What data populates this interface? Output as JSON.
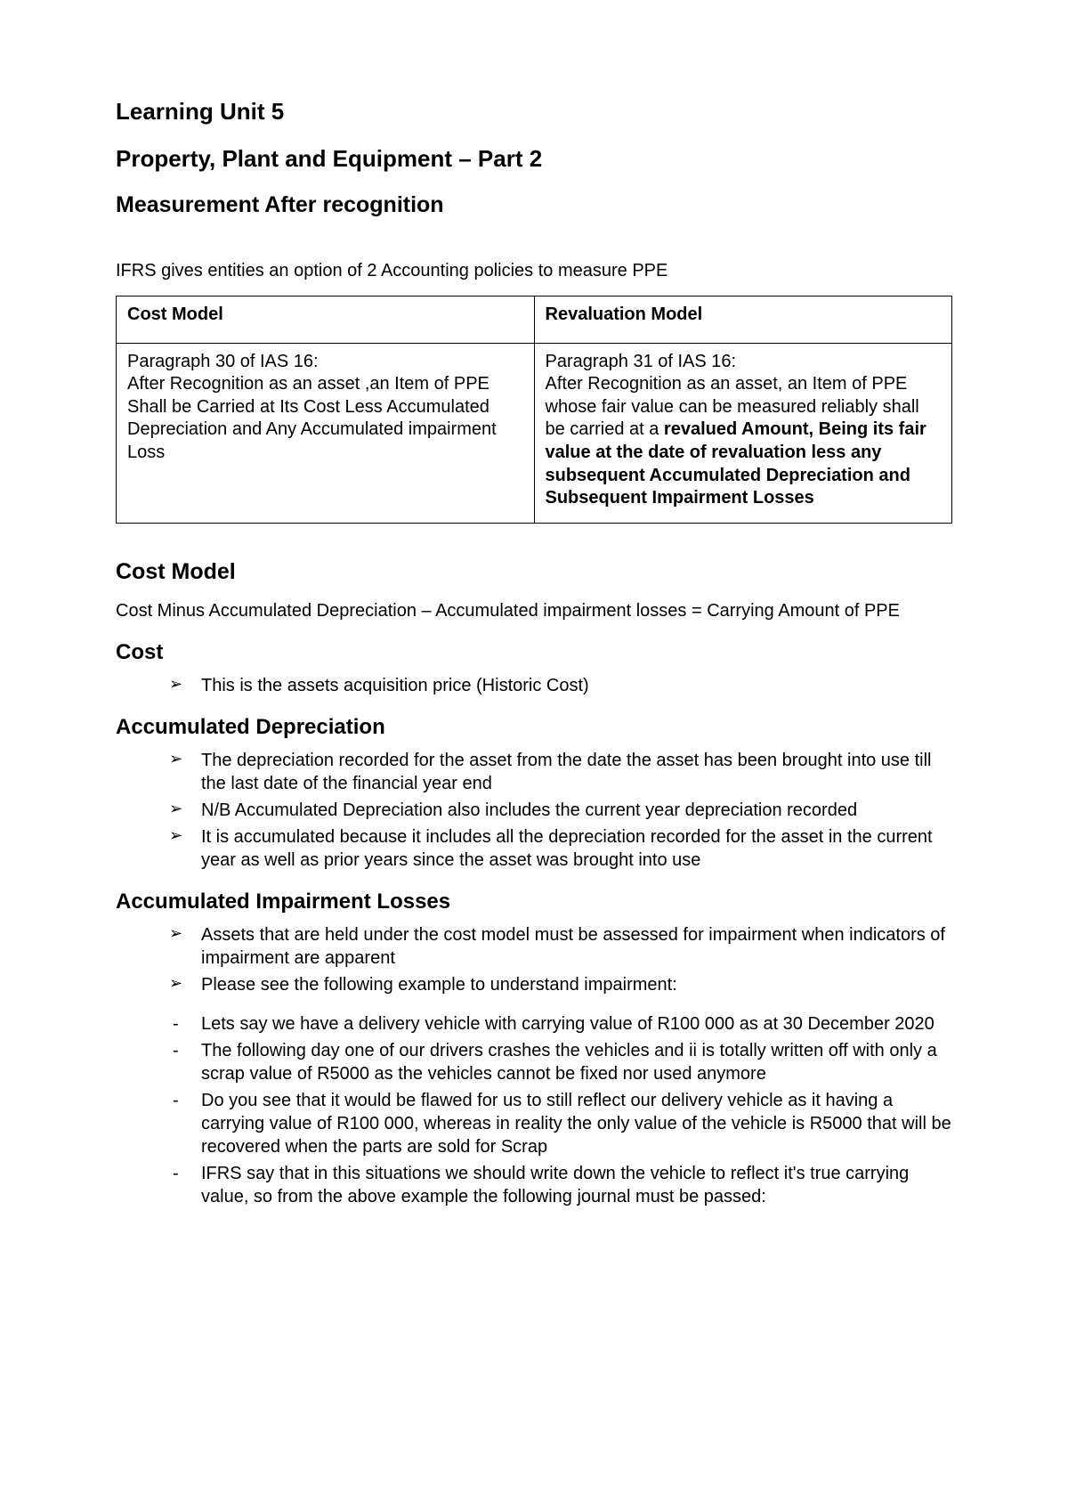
{
  "headings": {
    "unit": "Learning Unit 5",
    "title": "Property, Plant and Equipment – Part 2",
    "subtitle": "Measurement After recognition"
  },
  "intro": "IFRS gives entities an option of 2 Accounting policies to measure PPE",
  "table": {
    "left_header": "Cost Model",
    "right_header": "Revaluation Model",
    "left_body": "Paragraph 30 of IAS 16:\nAfter Recognition as an asset ,an Item of PPE Shall be Carried at Its Cost Less Accumulated Depreciation  and Any Accumulated impairment Loss",
    "right_body_plain": "Paragraph 31 of IAS 16:\nAfter Recognition as an asset, an Item of PPE whose fair value can be measured reliably shall be carried at a ",
    "right_body_bold": "revalued Amount, Being its fair value at the date of revaluation less any subsequent Accumulated Depreciation and Subsequent Impairment Losses"
  },
  "cost_model": {
    "heading": "Cost Model",
    "formula": "Cost Minus Accumulated Depreciation – Accumulated impairment losses = Carrying Amount of PPE"
  },
  "cost": {
    "heading": "Cost",
    "items": [
      "This is the assets acquisition price (Historic Cost)"
    ]
  },
  "acc_dep": {
    "heading": "Accumulated Depreciation",
    "items": [
      "The depreciation recorded for the asset from the date the asset has been brought into use till the last date of the financial year end",
      "N/B Accumulated Depreciation also includes the current year depreciation recorded",
      "It is accumulated because it includes all the depreciation recorded for the asset in the current year as well as prior years since the asset was brought into use"
    ]
  },
  "acc_imp": {
    "heading": "Accumulated Impairment Losses",
    "arrow_items": [
      "Assets that are held under the cost model must be assessed for impairment when indicators of impairment are apparent",
      "Please see the following example to understand impairment:"
    ],
    "dash_items": [
      "Lets say we have a delivery vehicle with carrying value of R100 000 as at 30 December 2020",
      "The following day one of our drivers crashes the vehicles and ii is totally written off with only a scrap value of R5000 as the vehicles cannot be fixed nor used anymore",
      "Do you see that it would be flawed for us to still reflect our delivery vehicle as it having a carrying value of R100 000, whereas in reality the only value of the vehicle is R5000 that will be recovered when the parts are sold for Scrap",
      "IFRS say that in this situations we should write down the vehicle to reflect it's true carrying value, so from the above example the following journal must be passed:"
    ]
  }
}
